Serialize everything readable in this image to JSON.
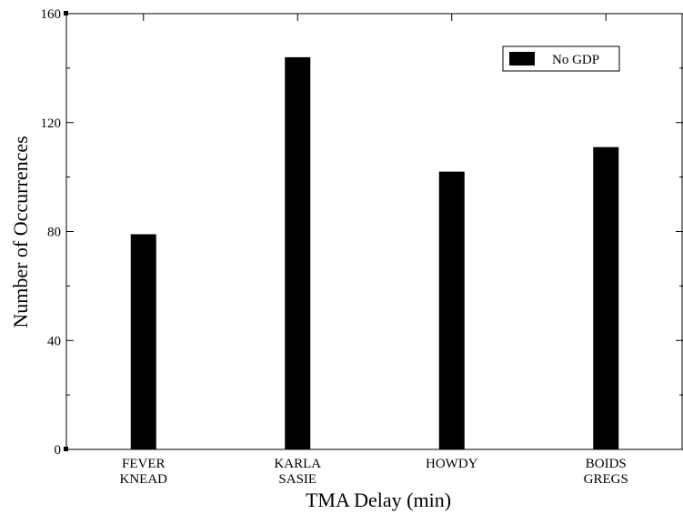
{
  "chart_data": {
    "type": "bar",
    "title": "",
    "xlabel": "TMA Delay (min)",
    "ylabel": "Number of Occurrences",
    "categories": [
      [
        "FEVER",
        "KNEAD"
      ],
      [
        "KARLA",
        "SASIE"
      ],
      [
        "HOWDY"
      ],
      [
        "BOIDS",
        "GREGS"
      ]
    ],
    "series": [
      {
        "name": "No GDP",
        "values": [
          79,
          144,
          102,
          111
        ],
        "color": "#000000"
      }
    ],
    "ylim": [
      0,
      160
    ],
    "yticks": [
      0,
      40,
      80,
      120,
      160
    ],
    "grid": false,
    "legend_position": "top-right"
  }
}
